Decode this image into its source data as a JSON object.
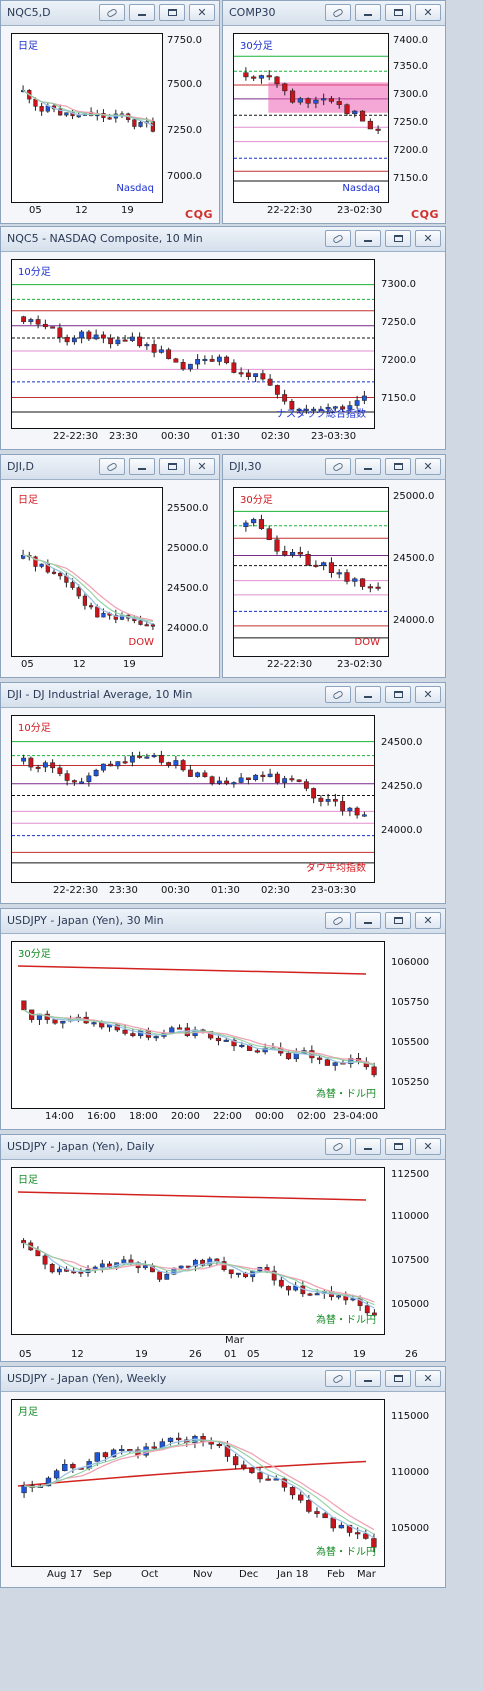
{
  "brand": "CQG",
  "windows": [
    {
      "id": "nqc5-d",
      "title": "NQC5,D",
      "period": "日足",
      "periodColor": "#1b2fd0",
      "label": "Nasdaq",
      "labelColor": "#1b2fd0",
      "yTicks": [
        "7750.0",
        "7500.0",
        "7250.0",
        "7000.0"
      ],
      "xTicks": [
        "05",
        "12",
        "19"
      ],
      "chart_data": {
        "type": "candlestick",
        "categories": [
          "05",
          "12",
          "19"
        ],
        "ylim": [
          6950,
          7780
        ],
        "ylabel": "",
        "xlabel": ""
      }
    },
    {
      "id": "comp30",
      "title": "COMP30",
      "period": "30分足",
      "periodColor": "#1b2fd0",
      "label": "Nasdaq",
      "labelColor": "#1b2fd0",
      "yTicks": [
        "7400.0",
        "7350.0",
        "7300.0",
        "7250.0",
        "7200.0",
        "7150.0"
      ],
      "xTicks": [
        "22-22:30",
        "23-02:30"
      ],
      "chart_data": {
        "type": "candlestick",
        "ylim": [
          7130,
          7420
        ]
      }
    },
    {
      "id": "nqc5-10",
      "title": "NQC5 - NASDAQ Composite, 10 Min",
      "period": "10分足",
      "periodColor": "#1b2fd0",
      "label": "ナスダック総合指数",
      "labelColor": "#1b2fd0",
      "yTicks": [
        "7300.0",
        "7250.0",
        "7200.0",
        "7150.0"
      ],
      "xTicks": [
        "22-22:30",
        "23:30",
        "00:30",
        "01:30",
        "02:30",
        "23-03:30"
      ],
      "chart_data": {
        "type": "candlestick",
        "ylim": [
          7130,
          7320
        ]
      }
    },
    {
      "id": "dji-d",
      "title": "DJI,D",
      "period": "日足",
      "periodColor": "#d0191f",
      "label": "DOW",
      "labelColor": "#d0191f",
      "yTicks": [
        "25500.0",
        "25000.0",
        "24500.0",
        "24000.0"
      ],
      "xTicks": [
        "05",
        "12",
        "19"
      ],
      "chart_data": {
        "type": "candlestick",
        "ylim": [
          23700,
          25750
        ]
      }
    },
    {
      "id": "dji-30",
      "title": "DJI,30",
      "period": "30分足",
      "periodColor": "#d0191f",
      "label": "DOW",
      "labelColor": "#d0191f",
      "yTicks": [
        "25000.0",
        "24500.0",
        "24000.0"
      ],
      "xTicks": [
        "22-22:30",
        "23-02:30"
      ],
      "chart_data": {
        "type": "candlestick",
        "ylim": [
          23850,
          25100
        ]
      }
    },
    {
      "id": "dji-10",
      "title": "DJI - DJ Industrial Average, 10 Min",
      "period": "10分足",
      "periodColor": "#d0191f",
      "label": "ダウ平均指数",
      "labelColor": "#d0191f",
      "yTicks": [
        "24500.0",
        "24250.0",
        "24000.0"
      ],
      "xTicks": [
        "22-22:30",
        "23:30",
        "00:30",
        "01:30",
        "02:30",
        "23-03:30"
      ],
      "chart_data": {
        "type": "candlestick",
        "ylim": [
          23850,
          24600
        ]
      }
    },
    {
      "id": "usdjpy-30",
      "title": "USDJPY - Japan (Yen), 30 Min",
      "period": "30分足",
      "periodColor": "#138a24",
      "label": "為替・ドル円",
      "labelColor": "#138a24",
      "yTicks": [
        "106000",
        "105750",
        "105500",
        "105250"
      ],
      "xTicks": [
        "14:00",
        "16:00",
        "18:00",
        "20:00",
        "22:00",
        "00:00",
        "02:00",
        "23-04:00"
      ],
      "chart_data": {
        "type": "candlestick",
        "ylim": [
          105150,
          106100
        ]
      }
    },
    {
      "id": "usdjpy-d",
      "title": "USDJPY - Japan (Yen), Daily",
      "period": "日足",
      "periodColor": "#138a24",
      "label": "為替・ドル円",
      "labelColor": "#138a24",
      "yTicks": [
        "112500",
        "110000",
        "107500",
        "105000"
      ],
      "xTicks": [
        "05",
        "12",
        "19",
        "26",
        "01",
        "05",
        "12",
        "19",
        "26"
      ],
      "xTickExtra": "Mar",
      "chart_data": {
        "type": "candlestick",
        "ylim": [
          104000,
          113200
        ]
      }
    },
    {
      "id": "usdjpy-w",
      "title": "USDJPY - Japan (Yen), Weekly",
      "period": "月足",
      "periodColor": "#138a24",
      "label": "為替・ドル円",
      "labelColor": "#138a24",
      "yTicks": [
        "115000",
        "110000",
        "105000"
      ],
      "xTicks": [
        "Aug 17",
        "Sep",
        "Oct",
        "Nov",
        "Dec",
        "Jan 18",
        "Feb",
        "Mar"
      ],
      "chart_data": {
        "type": "candlestick",
        "ylim": [
          103500,
          117500
        ]
      }
    }
  ]
}
